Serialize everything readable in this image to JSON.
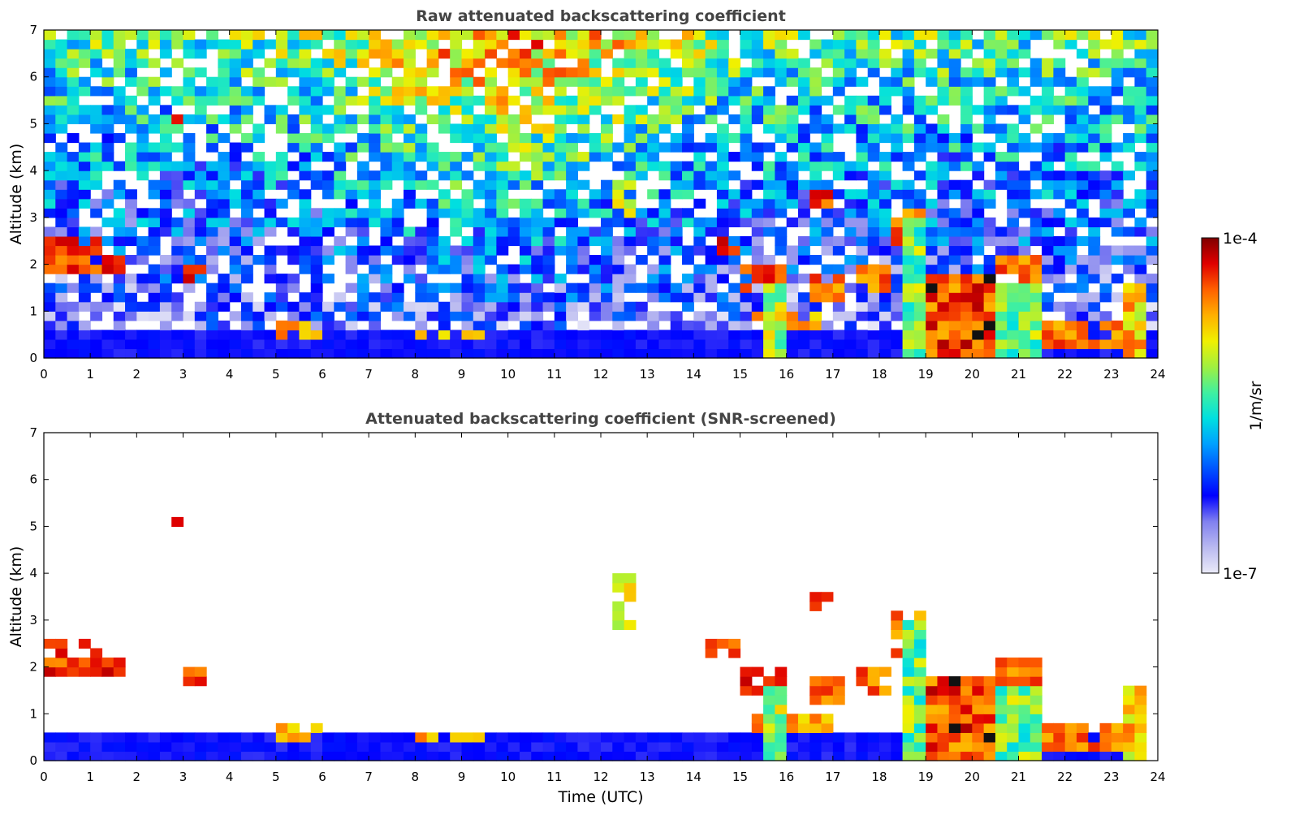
{
  "chart_data": [
    {
      "type": "heatmap",
      "title": "Raw attenuated backscattering coefficient",
      "xlabel": "",
      "ylabel": "Altitude (km)",
      "xlim": [
        0,
        24
      ],
      "ylim": [
        0,
        7
      ],
      "x_ticks": [
        "0",
        "1",
        "2",
        "3",
        "4",
        "5",
        "6",
        "7",
        "8",
        "9",
        "10",
        "11",
        "12",
        "13",
        "14",
        "15",
        "16",
        "17",
        "18",
        "19",
        "20",
        "21",
        "22",
        "23",
        "24"
      ],
      "y_ticks": [
        "0",
        "1",
        "2",
        "3",
        "4",
        "5",
        "6",
        "7"
      ],
      "screened": false
    },
    {
      "type": "heatmap",
      "title": "Attenuated backscattering coefficient (SNR-screened)",
      "xlabel": "Time (UTC)",
      "ylabel": "Altitude (km)",
      "xlim": [
        0,
        24
      ],
      "ylim": [
        0,
        7
      ],
      "x_ticks": [
        "0",
        "1",
        "2",
        "3",
        "4",
        "5",
        "6",
        "7",
        "8",
        "9",
        "10",
        "11",
        "12",
        "13",
        "14",
        "15",
        "16",
        "17",
        "18",
        "19",
        "20",
        "21",
        "22",
        "23",
        "24"
      ],
      "y_ticks": [
        "0",
        "1",
        "2",
        "3",
        "4",
        "5",
        "6",
        "7"
      ],
      "screened": true
    }
  ],
  "colorbar": {
    "label": "1/m/sr",
    "max_label": "1e-4",
    "min_label": "1e-7",
    "scale": "log",
    "colors": [
      "#eaeaf8",
      "#b9b9f0",
      "#8080f0",
      "#0000ff",
      "#0050ff",
      "#00a0ff",
      "#00e0e0",
      "#40f0a0",
      "#a0f040",
      "#f0f000",
      "#ffb000",
      "#ff6000",
      "#e00000",
      "#800000"
    ]
  }
}
